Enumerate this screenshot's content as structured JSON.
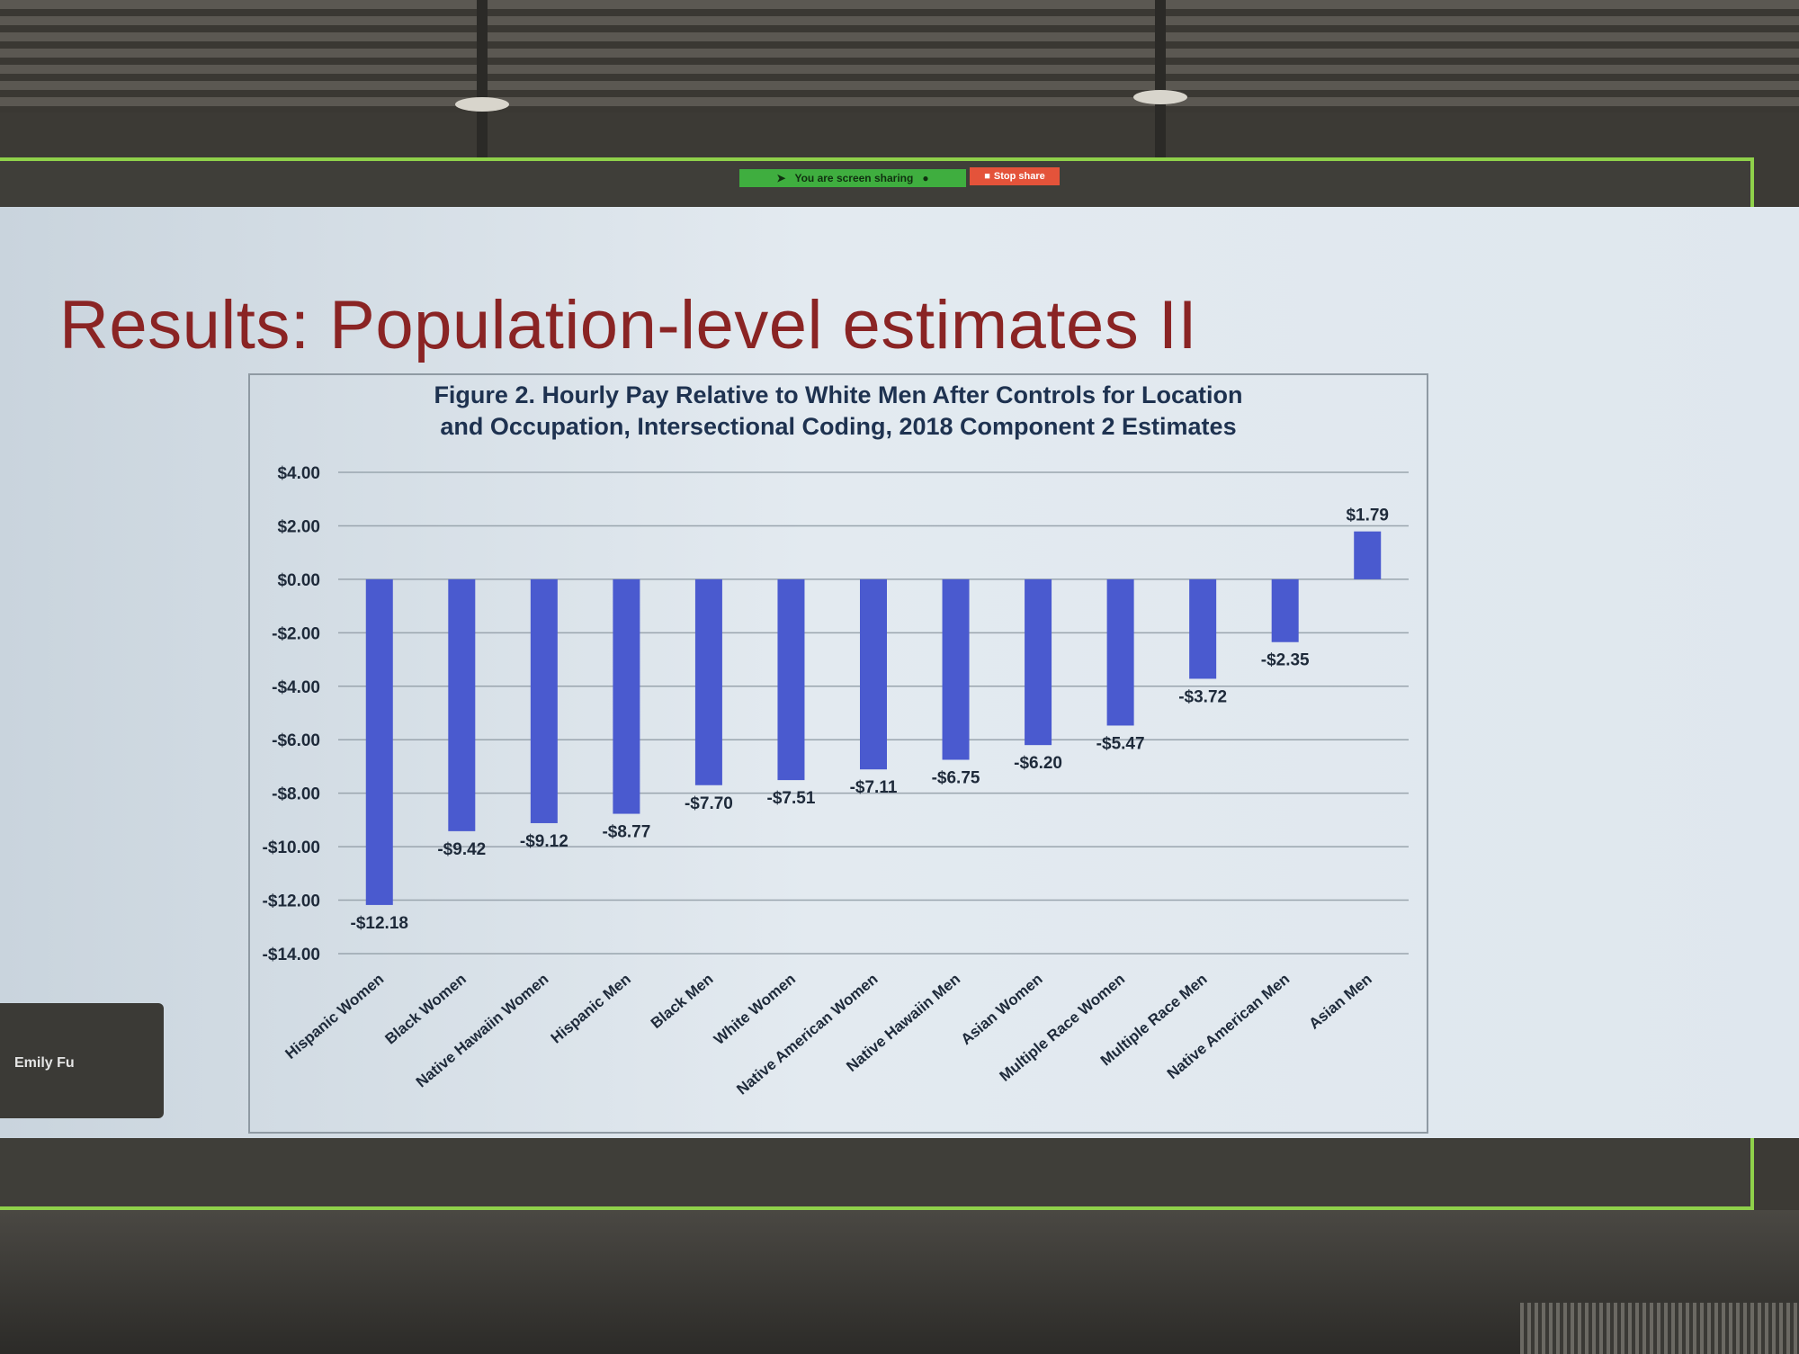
{
  "window": {
    "share_status": "You are screen sharing",
    "stop_share_label": "Stop share",
    "presenter_name": "Emily Fu"
  },
  "slide": {
    "title": "Results: Population-level estimates II"
  },
  "colors": {
    "bar": "#4a5acf",
    "title_red": "#8a2424",
    "gridline": "#9aa5ae",
    "share_green": "#3fae3f",
    "stop_red": "#e4533a"
  },
  "chart_data": {
    "type": "bar",
    "title": "Figure 2. Hourly Pay Relative to White Men After Controls for Location and Occupation, Intersectional Coding, 2018 Component 2 Estimates",
    "title_lines": [
      "Figure 2. Hourly Pay Relative to White Men After Controls for Location",
      "and Occupation, Intersectional Coding, 2018 Component 2 Estimates"
    ],
    "categories": [
      "Hispanic Women",
      "Black Women",
      "Native Hawaiin Women",
      "Hispanic Men",
      "Black Men",
      "White Women",
      "Native American Women",
      "Native Hawaiin Men",
      "Asian Women",
      "Multiple Race Women",
      "Multiple Race Men",
      "Native American Men",
      "Asian Men"
    ],
    "values": [
      -12.18,
      -9.42,
      -9.12,
      -8.77,
      -7.7,
      -7.51,
      -7.11,
      -6.75,
      -6.2,
      -5.47,
      -3.72,
      -2.35,
      1.79
    ],
    "data_labels": [
      "-$12.18",
      "-$9.42",
      "-$9.12",
      "-$8.77",
      "-$7.70",
      "-$7.51",
      "-$7.11",
      "-$6.75",
      "-$6.20",
      "-$5.47",
      "-$3.72",
      "-$2.35",
      "$1.79"
    ],
    "ylim": [
      -14,
      4
    ],
    "yticks": [
      4,
      2,
      0,
      -2,
      -4,
      -6,
      -8,
      -10,
      -12,
      -14
    ],
    "ytick_labels": [
      "$4.00",
      "$2.00",
      "$0.00",
      "-$2.00",
      "-$4.00",
      "-$6.00",
      "-$8.00",
      "-$10.00",
      "-$12.00",
      "-$14.00"
    ],
    "grid": true,
    "legend": "none",
    "xlabel": "",
    "ylabel": ""
  }
}
